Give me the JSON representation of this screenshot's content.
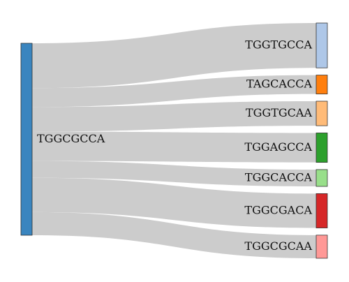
{
  "chart_data": {
    "type": "sankey",
    "link_color": "#cccccc",
    "source": {
      "label": "TGGCGCCA",
      "color": "#3a85bf"
    },
    "targets": [
      {
        "label": "TGGTGCCA",
        "value": 64,
        "color": "#aec7e8"
      },
      {
        "label": "TAGCACCA",
        "value": 27,
        "color": "#ff7f0e"
      },
      {
        "label": "TGGTGCAA",
        "value": 35,
        "color": "#ffbb78"
      },
      {
        "label": "TGGAGCCA",
        "value": 42,
        "color": "#2ca02c"
      },
      {
        "label": "TGGCACCA",
        "value": 24,
        "color": "#98df8a"
      },
      {
        "label": "TGGCGACA",
        "value": 49,
        "color": "#d62728"
      },
      {
        "label": "TGGCGCAA",
        "value": 33,
        "color": "#ff9896"
      }
    ]
  }
}
